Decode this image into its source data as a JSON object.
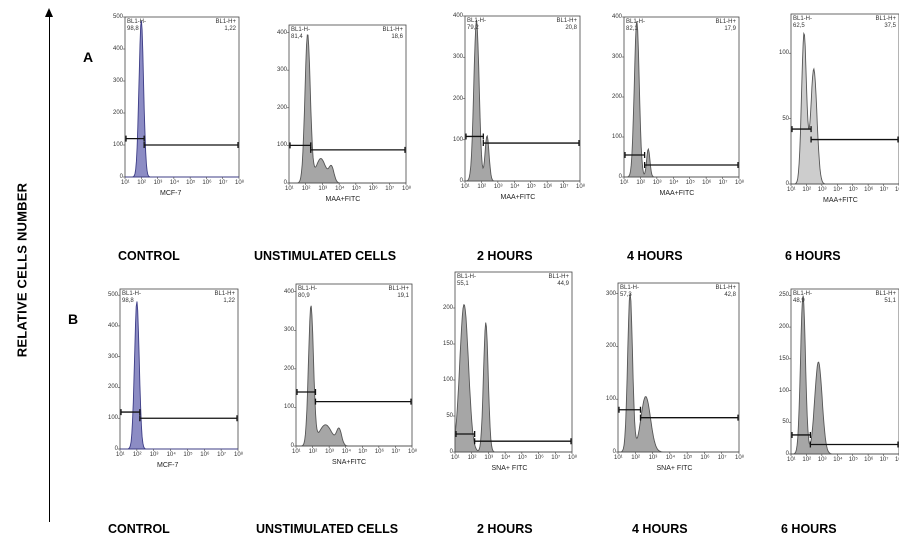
{
  "y_axis_label": "RELATIVE CELLS NUMBER",
  "panels": [
    {
      "letter": "A",
      "labels": [
        "CONTROL",
        "UNSTIMULATED CELLS",
        "2 HOURS",
        "4 HOURS",
        "6 HOURS"
      ]
    },
    {
      "letter": "B",
      "labels": [
        "CONTROL",
        "UNSTIMULATED CELLS",
        "2 HOURS",
        "4 HOURS",
        "6 HOURS"
      ]
    }
  ],
  "colors": {
    "control_fill": "#8c8cc4",
    "control_stroke": "#3c3c86",
    "sample_fill": "#a6a6a6",
    "sample_stroke": "#555555",
    "light_fill": "#cdcdcd",
    "gate": "#111111"
  },
  "chart_data": [
    {
      "type": "area",
      "panel": "A",
      "condition": "CONTROL",
      "xlabel": "MCF-7",
      "gate_neg": "BL1-H-",
      "gate_pos": "BL1-H+",
      "pct_neg": "98,8",
      "pct_pos": "1,22",
      "xscale": "log",
      "xlim": [
        10,
        100000000
      ],
      "ylim": [
        0,
        500
      ],
      "yticks": [
        0,
        100,
        200,
        300,
        400,
        500
      ],
      "color": "control",
      "peaks": [
        {
          "x": 100,
          "height": 490,
          "width": 0.14
        }
      ],
      "gate_boundary": 150,
      "gate_left_y": 120,
      "gate_right_y": 100
    },
    {
      "type": "area",
      "panel": "A",
      "condition": "UNSTIMULATED CELLS",
      "xlabel": "MAA+FITC",
      "gate_neg": "BL1-H-",
      "gate_pos": "BL1-H+",
      "pct_neg": "81,4",
      "pct_pos": "18,6",
      "xscale": "log",
      "xlim": [
        10,
        100000000
      ],
      "ylim": [
        0,
        420
      ],
      "yticks": [
        0,
        100,
        200,
        300,
        400
      ],
      "color": "sample",
      "peaks": [
        {
          "x": 130,
          "height": 395,
          "width": 0.16
        },
        {
          "x": 800,
          "height": 65,
          "width": 0.3
        },
        {
          "x": 3500,
          "height": 40,
          "width": 0.15
        }
      ],
      "gate_boundary": 200,
      "gate_left_y": 100,
      "gate_right_y": 88
    },
    {
      "type": "area",
      "panel": "A",
      "condition": "2 HOURS",
      "xlabel": "MAA+FITC",
      "gate_neg": "BL1-H-",
      "gate_pos": "BL1-H+",
      "pct_neg": "79,2",
      "pct_pos": "20,8",
      "xscale": "log",
      "xlim": [
        10,
        100000000
      ],
      "ylim": [
        0,
        400
      ],
      "yticks": [
        0,
        100,
        200,
        300,
        400
      ],
      "color": "sample",
      "peaks": [
        {
          "x": 50,
          "height": 390,
          "width": 0.16
        },
        {
          "x": 220,
          "height": 110,
          "width": 0.12
        }
      ],
      "gate_boundary": 130,
      "gate_left_y": 108,
      "gate_right_y": 92
    },
    {
      "type": "area",
      "panel": "A",
      "condition": "4 HOURS",
      "xlabel": "MAA+FITC",
      "gate_neg": "BL1-H-",
      "gate_pos": "BL1-H+",
      "pct_neg": "82,1",
      "pct_pos": "17,9",
      "xscale": "log",
      "xlim": [
        10,
        100000000
      ],
      "ylim": [
        0,
        400
      ],
      "yticks": [
        0,
        100,
        200,
        300,
        400
      ],
      "color": "sample",
      "peaks": [
        {
          "x": 60,
          "height": 390,
          "width": 0.15
        },
        {
          "x": 300,
          "height": 70,
          "width": 0.1
        }
      ],
      "gate_boundary": 180,
      "gate_left_y": 55,
      "gate_right_y": 30
    },
    {
      "type": "area",
      "panel": "A",
      "condition": "6 HOURS",
      "xlabel": "MAA+FITC",
      "gate_neg": "BL1-H-",
      "gate_pos": "BL1-H+",
      "pct_neg": "62,5",
      "pct_pos": "37,5",
      "xscale": "log",
      "xlim": [
        10,
        100000000
      ],
      "ylim": [
        0,
        130
      ],
      "yticks": [
        0,
        50,
        100
      ],
      "color": "light",
      "peaks": [
        {
          "x": 70,
          "height": 115,
          "width": 0.16
        },
        {
          "x": 300,
          "height": 88,
          "width": 0.2
        }
      ],
      "gate_boundary": 200,
      "gate_left_y": 42,
      "gate_right_y": 34
    },
    {
      "type": "area",
      "panel": "B",
      "condition": "CONTROL",
      "xlabel": "MCF-7",
      "gate_neg": "BL1-H-",
      "gate_pos": "BL1-H+",
      "pct_neg": "98,8",
      "pct_pos": "1,22",
      "xscale": "log",
      "xlim": [
        10,
        100000000
      ],
      "ylim": [
        0,
        520
      ],
      "yticks": [
        0,
        100,
        200,
        300,
        400,
        500
      ],
      "color": "control",
      "peaks": [
        {
          "x": 100,
          "height": 480,
          "width": 0.14
        }
      ],
      "gate_boundary": 150,
      "gate_left_y": 120,
      "gate_right_y": 100
    },
    {
      "type": "area",
      "panel": "B",
      "condition": "UNSTIMULATED CELLS",
      "xlabel": "SNA+FITC",
      "gate_neg": "BL1-H-",
      "gate_pos": "BL1-H+",
      "pct_neg": "80,9",
      "pct_pos": "19,1",
      "xscale": "log",
      "xlim": [
        10,
        100000000
      ],
      "ylim": [
        0,
        420
      ],
      "yticks": [
        0,
        100,
        200,
        300,
        400
      ],
      "color": "sample",
      "peaks": [
        {
          "x": 80,
          "height": 360,
          "width": 0.15
        },
        {
          "x": 600,
          "height": 55,
          "width": 0.4
        },
        {
          "x": 4000,
          "height": 40,
          "width": 0.15
        }
      ],
      "gate_boundary": 150,
      "gate_left_y": 140,
      "gate_right_y": 115
    },
    {
      "type": "area",
      "panel": "B",
      "condition": "2 HOURS",
      "xlabel": "SNA+ FITC",
      "gate_neg": "BL1-H-",
      "gate_pos": "BL1-H+",
      "pct_neg": "55,1",
      "pct_pos": "44,9",
      "xscale": "log",
      "xlim": [
        10,
        100000000
      ],
      "ylim": [
        0,
        250
      ],
      "yticks": [
        0,
        50,
        100,
        150,
        200
      ],
      "color": "sample",
      "peaks": [
        {
          "x": 35,
          "height": 205,
          "width": 0.26
        },
        {
          "x": 700,
          "height": 180,
          "width": 0.14
        }
      ],
      "gate_boundary": 150,
      "gate_left_y": 25,
      "gate_right_y": 15
    },
    {
      "type": "area",
      "panel": "B",
      "condition": "4 HOURS",
      "xlabel": "SNA+ FITC",
      "gate_neg": "BL1-H-",
      "gate_pos": "BL1-H+",
      "pct_neg": "57,3",
      "pct_pos": "42,8",
      "xscale": "log",
      "xlim": [
        10,
        100000000
      ],
      "ylim": [
        0,
        320
      ],
      "yticks": [
        0,
        100,
        200,
        300
      ],
      "color": "sample",
      "peaks": [
        {
          "x": 50,
          "height": 300,
          "width": 0.14
        },
        {
          "x": 400,
          "height": 105,
          "width": 0.28
        }
      ],
      "gate_boundary": 200,
      "gate_left_y": 80,
      "gate_right_y": 65
    },
    {
      "type": "area",
      "panel": "B",
      "condition": "6 HOURS",
      "xlabel": "",
      "gate_neg": "BL1-H-",
      "gate_pos": "BL1-H+",
      "pct_neg": "48,9",
      "pct_pos": "51,1",
      "xscale": "log",
      "xlim": [
        10,
        100000000
      ],
      "ylim": [
        0,
        260
      ],
      "yticks": [
        0,
        50,
        100,
        150,
        200,
        250
      ],
      "color": "sample",
      "peaks": [
        {
          "x": 60,
          "height": 250,
          "width": 0.16
        },
        {
          "x": 600,
          "height": 145,
          "width": 0.24
        }
      ],
      "gate_boundary": 180,
      "gate_left_y": 30,
      "gate_right_y": 15
    }
  ]
}
